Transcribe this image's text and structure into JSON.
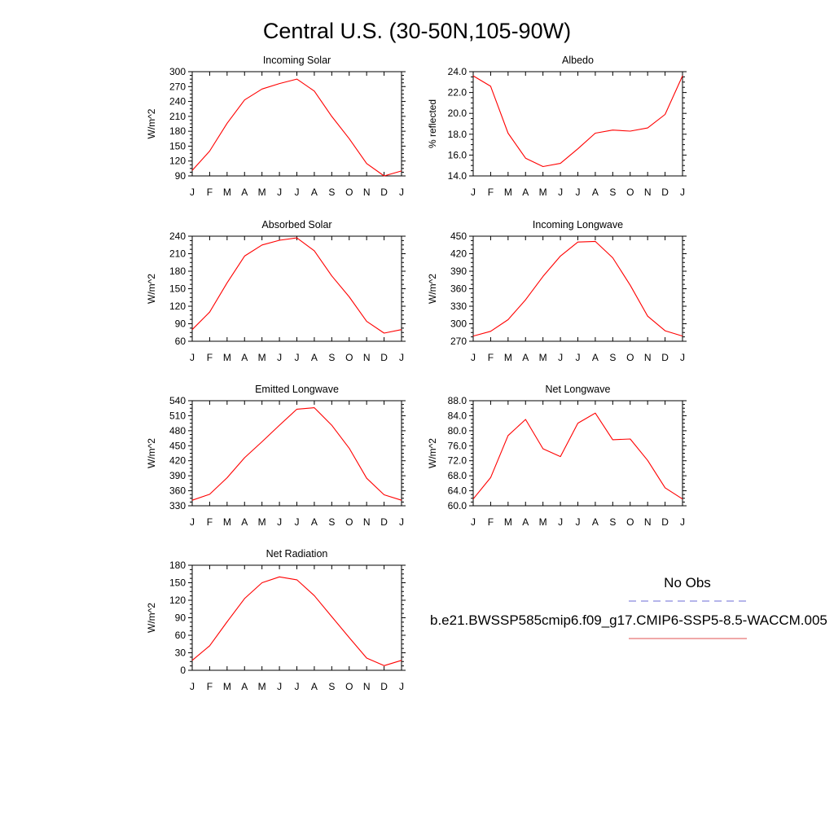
{
  "page": {
    "title": "Central U.S. (30-50N,105-90W)"
  },
  "legend": {
    "obs_label": "No Obs",
    "model_label": "b.e21.BWSSP585cmip6.f09_g17.CMIP6-SSP5-8.5-WACCM.005",
    "obs_color": "#6b6bd6",
    "model_color": "#e05050"
  },
  "colors": {
    "line": "#ff0000",
    "axis": "#000000"
  },
  "chart_data": [
    {
      "type": "line",
      "title": "Incoming Solar",
      "ylabel": "W/m^2",
      "ylim": [
        90,
        300
      ],
      "yticks": [
        "90",
        "120",
        "150",
        "180",
        "210",
        "240",
        "270",
        "300"
      ],
      "categories": [
        "J",
        "F",
        "M",
        "A",
        "M",
        "J",
        "J",
        "A",
        "S",
        "O",
        "N",
        "D",
        "J"
      ],
      "series": [
        {
          "values": [
            101,
            140,
            196,
            243,
            265,
            276,
            285,
            261,
            210,
            165,
            115,
            90,
            100
          ]
        }
      ]
    },
    {
      "type": "line",
      "title": "Albedo",
      "ylabel": "% reflected",
      "ylim": [
        14.0,
        24.0
      ],
      "yticks": [
        "14.0",
        "16.0",
        "18.0",
        "20.0",
        "22.0",
        "24.0"
      ],
      "categories": [
        "J",
        "F",
        "M",
        "A",
        "M",
        "J",
        "J",
        "A",
        "S",
        "O",
        "N",
        "D",
        "J"
      ],
      "series": [
        {
          "values": [
            23.6,
            22.6,
            18.1,
            15.7,
            14.9,
            15.2,
            16.6,
            18.1,
            18.4,
            18.3,
            18.6,
            19.9,
            23.6
          ]
        }
      ]
    },
    {
      "type": "line",
      "title": "Absorbed Solar",
      "ylabel": "W/m^2",
      "ylim": [
        60,
        240
      ],
      "yticks": [
        "60",
        "90",
        "120",
        "150",
        "180",
        "210",
        "240"
      ],
      "categories": [
        "J",
        "F",
        "M",
        "A",
        "M",
        "J",
        "J",
        "A",
        "S",
        "O",
        "N",
        "D",
        "J"
      ],
      "series": [
        {
          "values": [
            80,
            110,
            160,
            206,
            225,
            233,
            237,
            215,
            172,
            136,
            94,
            74,
            80
          ]
        }
      ]
    },
    {
      "type": "line",
      "title": "Incoming Longwave",
      "ylabel": "W/m^2",
      "ylim": [
        270,
        450
      ],
      "yticks": [
        "270",
        "300",
        "330",
        "360",
        "390",
        "420",
        "450"
      ],
      "categories": [
        "J",
        "F",
        "M",
        "A",
        "M",
        "J",
        "J",
        "A",
        "S",
        "O",
        "N",
        "D",
        "J"
      ],
      "series": [
        {
          "values": [
            279,
            287,
            307,
            341,
            381,
            416,
            440,
            441,
            413,
            366,
            313,
            288,
            279
          ]
        }
      ]
    },
    {
      "type": "line",
      "title": "Emitted Longwave",
      "ylabel": "W/m^2",
      "ylim": [
        330,
        540
      ],
      "yticks": [
        "330",
        "360",
        "390",
        "420",
        "450",
        "480",
        "510",
        "540"
      ],
      "categories": [
        "J",
        "F",
        "M",
        "A",
        "M",
        "J",
        "J",
        "A",
        "S",
        "O",
        "N",
        "D",
        "J"
      ],
      "series": [
        {
          "values": [
            341,
            353,
            386,
            426,
            458,
            491,
            523,
            526,
            491,
            445,
            385,
            352,
            341
          ]
        }
      ]
    },
    {
      "type": "line",
      "title": "Net Longwave",
      "ylabel": "W/m^2",
      "ylim": [
        60.0,
        88.0
      ],
      "yticks": [
        "60.0",
        "64.0",
        "68.0",
        "72.0",
        "76.0",
        "80.0",
        "84.0",
        "88.0"
      ],
      "categories": [
        "J",
        "F",
        "M",
        "A",
        "M",
        "J",
        "J",
        "A",
        "S",
        "O",
        "N",
        "D",
        "J"
      ],
      "series": [
        {
          "values": [
            61.8,
            67.5,
            78.7,
            83.0,
            75.2,
            73.1,
            82.0,
            84.7,
            77.6,
            77.8,
            72.1,
            64.8,
            61.8
          ]
        }
      ]
    },
    {
      "type": "line",
      "title": "Net Radiation",
      "ylabel": "W/m^2",
      "ylim": [
        0,
        180
      ],
      "yticks": [
        "0",
        "30",
        "60",
        "90",
        "120",
        "150",
        "180"
      ],
      "categories": [
        "J",
        "F",
        "M",
        "A",
        "M",
        "J",
        "J",
        "A",
        "S",
        "O",
        "N",
        "D",
        "J"
      ],
      "series": [
        {
          "values": [
            17,
            42,
            83,
            123,
            150,
            160,
            155,
            128,
            92,
            56,
            21,
            8,
            17
          ]
        }
      ]
    }
  ]
}
